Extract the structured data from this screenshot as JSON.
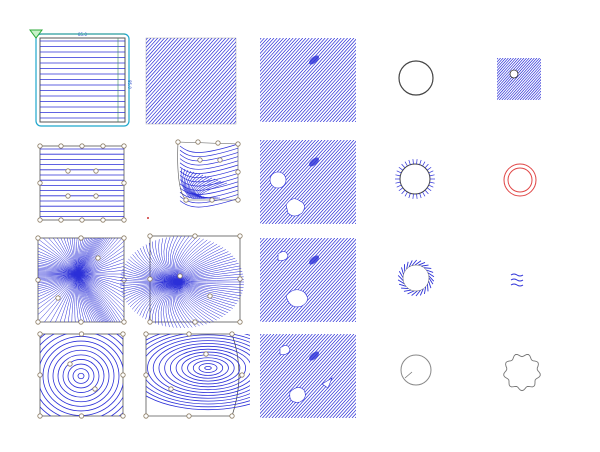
{
  "title": "",
  "colors": {
    "hatch": "#2b2fd8",
    "frame": "#555555",
    "green": "#2eaa3a",
    "cyan": "#1ea6cc",
    "red": "#e04545",
    "circle": "#555555",
    "node": "#8b7b63"
  },
  "panel_a": {
    "top_label": "85.0",
    "side_label": "85.0"
  },
  "row_count": 4,
  "column_count": 5
}
